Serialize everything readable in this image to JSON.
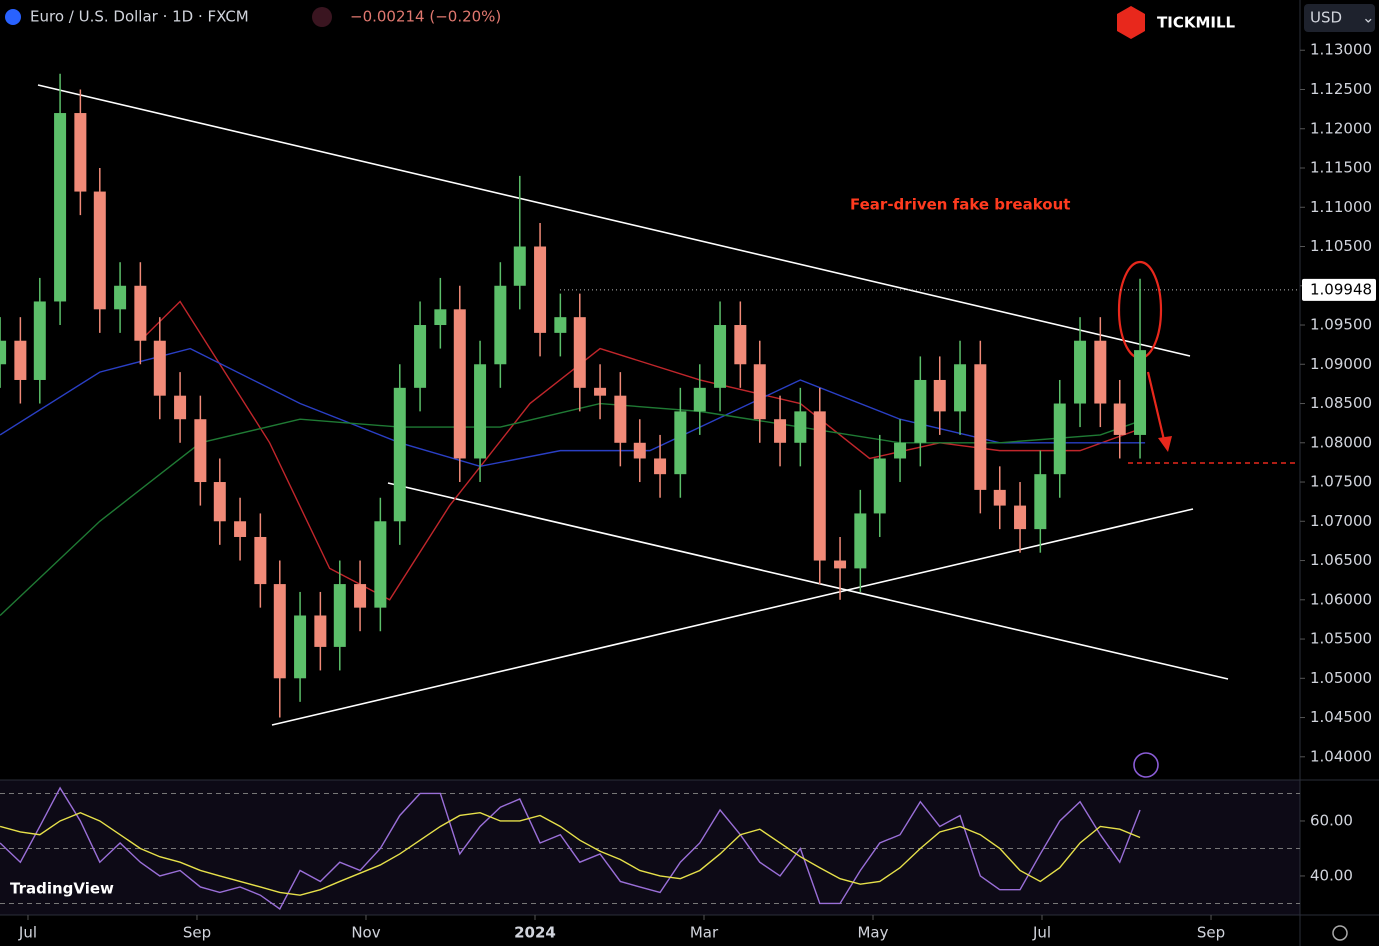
{
  "header": {
    "symbol": "Euro / U.S. Dollar · 1D · FXCM",
    "change": "−0.00214 (−0.20%)",
    "brand": "TICKMILL",
    "currency": "USD",
    "platform": "TradingView"
  },
  "chart_data": [
    {
      "type": "candlestick",
      "annotation": "Fear-driven fake breakout",
      "up_color": "#5cbf6a",
      "down_color": "#f08a78",
      "xlim": [
        -0.331,
        15.053
      ],
      "xticks": [
        {
          "value": 0,
          "label": "Jul"
        },
        {
          "value": 2,
          "label": "Sep"
        },
        {
          "value": 4,
          "label": "Nov"
        },
        {
          "value": 6,
          "label": "2024"
        },
        {
          "value": 8,
          "label": "Mar"
        },
        {
          "value": 10,
          "label": "May"
        },
        {
          "value": 12,
          "label": "Jul"
        },
        {
          "value": 14,
          "label": "Sep"
        }
      ],
      "ylim": [
        1.0373,
        1.1364
      ],
      "yticks": [
        {
          "value": 1.13,
          "label": "1.13000"
        },
        {
          "value": 1.125,
          "label": "1.12500"
        },
        {
          "value": 1.12,
          "label": "1.12000"
        },
        {
          "value": 1.115,
          "label": "1.11500"
        },
        {
          "value": 1.11,
          "label": "1.11000"
        },
        {
          "value": 1.105,
          "label": "1.10500"
        },
        {
          "value": 1.1,
          "label": "1.10000"
        },
        {
          "value": 1.095,
          "label": "1.09500"
        },
        {
          "value": 1.09,
          "label": "1.09000"
        },
        {
          "value": 1.085,
          "label": "1.08500"
        },
        {
          "value": 1.08,
          "label": "1.08000"
        },
        {
          "value": 1.075,
          "label": "1.07500"
        },
        {
          "value": 1.07,
          "label": "1.07000"
        },
        {
          "value": 1.065,
          "label": "1.06500"
        },
        {
          "value": 1.06,
          "label": "1.06000"
        },
        {
          "value": 1.055,
          "label": "1.05500"
        },
        {
          "value": 1.05,
          "label": "1.05000"
        },
        {
          "value": 1.045,
          "label": "1.04500"
        },
        {
          "value": 1.04,
          "label": "1.04000"
        }
      ],
      "price_line": {
        "value": 1.09948,
        "label": "1.09948"
      },
      "x": [
        -0.33,
        -0.09,
        0.14,
        0.38,
        0.62,
        0.85,
        1.09,
        1.33,
        1.56,
        1.8,
        2.04,
        2.27,
        2.51,
        2.75,
        2.98,
        3.22,
        3.46,
        3.69,
        3.93,
        4.17,
        4.4,
        4.64,
        4.88,
        5.11,
        5.35,
        5.59,
        5.82,
        6.06,
        6.3,
        6.53,
        6.77,
        7.01,
        7.24,
        7.48,
        7.72,
        7.95,
        8.19,
        8.43,
        8.66,
        8.9,
        9.14,
        9.37,
        9.61,
        9.85,
        10.08,
        10.32,
        10.56,
        10.79,
        11.03,
        11.27,
        11.5,
        11.74,
        11.98,
        12.21,
        12.45,
        12.69,
        12.92,
        13.16
      ],
      "open": [
        1.09,
        1.093,
        1.088,
        1.098,
        1.122,
        1.112,
        1.097,
        1.1,
        1.093,
        1.086,
        1.083,
        1.075,
        1.07,
        1.068,
        1.062,
        1.05,
        1.058,
        1.054,
        1.062,
        1.059,
        1.07,
        1.087,
        1.095,
        1.097,
        1.078,
        1.09,
        1.1,
        1.105,
        1.094,
        1.096,
        1.087,
        1.086,
        1.08,
        1.078,
        1.076,
        1.084,
        1.087,
        1.095,
        1.09,
        1.083,
        1.08,
        1.084,
        1.065,
        1.064,
        1.071,
        1.078,
        1.08,
        1.088,
        1.084,
        1.09,
        1.074,
        1.072,
        1.069,
        1.076,
        1.085,
        1.093,
        1.085,
        1.081
      ],
      "high": [
        1.096,
        1.096,
        1.101,
        1.127,
        1.125,
        1.115,
        1.103,
        1.103,
        1.096,
        1.089,
        1.086,
        1.078,
        1.073,
        1.071,
        1.065,
        1.061,
        1.061,
        1.065,
        1.065,
        1.073,
        1.09,
        1.098,
        1.101,
        1.1,
        1.093,
        1.103,
        1.114,
        1.108,
        1.099,
        1.099,
        1.09,
        1.089,
        1.083,
        1.081,
        1.087,
        1.09,
        1.098,
        1.098,
        1.093,
        1.086,
        1.087,
        1.087,
        1.068,
        1.074,
        1.081,
        1.083,
        1.091,
        1.091,
        1.093,
        1.093,
        1.077,
        1.075,
        1.079,
        1.088,
        1.096,
        1.096,
        1.088,
        1.1009
      ],
      "low": [
        1.087,
        1.085,
        1.085,
        1.095,
        1.109,
        1.094,
        1.094,
        1.09,
        1.083,
        1.08,
        1.072,
        1.067,
        1.065,
        1.059,
        1.045,
        1.047,
        1.051,
        1.051,
        1.056,
        1.056,
        1.067,
        1.084,
        1.092,
        1.075,
        1.075,
        1.087,
        1.097,
        1.091,
        1.091,
        1.084,
        1.083,
        1.077,
        1.075,
        1.073,
        1.073,
        1.081,
        1.084,
        1.087,
        1.08,
        1.077,
        1.077,
        1.062,
        1.06,
        1.061,
        1.068,
        1.075,
        1.077,
        1.081,
        1.081,
        1.071,
        1.069,
        1.066,
        1.066,
        1.073,
        1.082,
        1.082,
        1.078,
        1.078
      ],
      "close": [
        1.093,
        1.088,
        1.098,
        1.122,
        1.112,
        1.097,
        1.1,
        1.093,
        1.086,
        1.083,
        1.075,
        1.07,
        1.068,
        1.062,
        1.05,
        1.058,
        1.054,
        1.062,
        1.059,
        1.07,
        1.087,
        1.095,
        1.097,
        1.078,
        1.09,
        1.1,
        1.105,
        1.094,
        1.096,
        1.087,
        1.086,
        1.08,
        1.078,
        1.076,
        1.084,
        1.087,
        1.095,
        1.09,
        1.083,
        1.08,
        1.084,
        1.065,
        1.064,
        1.071,
        1.078,
        1.08,
        1.088,
        1.084,
        1.09,
        1.074,
        1.072,
        1.069,
        1.076,
        1.085,
        1.093,
        1.085,
        1.081,
        1.0918
      ],
      "lines": [
        {
          "color": "#c0262b",
          "x": [
            1.33,
            1.8,
            2.86,
            3.57,
            4.28,
            4.99,
            5.94,
            6.77,
            7.95,
            9.14,
            9.96,
            10.79,
            11.5,
            12.45,
            13.22
          ],
          "values": [
            1.093,
            1.098,
            1.08,
            1.064,
            1.06,
            1.072,
            1.085,
            1.092,
            1.088,
            1.085,
            1.078,
            1.08,
            1.079,
            1.079,
            1.082
          ]
        },
        {
          "color": "#2a3fc4",
          "x": [
            -0.33,
            0.85,
            1.92,
            3.22,
            4.4,
            5.35,
            6.3,
            7.36,
            9.14,
            10.32,
            11.5,
            12.69,
            13.22
          ],
          "values": [
            1.081,
            1.089,
            1.092,
            1.085,
            1.08,
            1.077,
            1.079,
            1.079,
            1.088,
            1.083,
            1.08,
            1.08,
            1.08
          ]
        },
        {
          "color": "#1f7a34",
          "x": [
            -0.33,
            0.85,
            2.04,
            3.22,
            4.4,
            5.59,
            6.77,
            7.95,
            9.14,
            10.32,
            11.5,
            12.69,
            13.22
          ],
          "values": [
            1.058,
            1.07,
            1.08,
            1.083,
            1.082,
            1.082,
            1.085,
            1.084,
            1.082,
            1.08,
            1.08,
            1.081,
            1.083
          ]
        }
      ]
    },
    {
      "type": "line",
      "xlim": [
        -0.331,
        15.053
      ],
      "ylim": [
        25.8,
        74.9
      ],
      "yticks": [
        {
          "value": 60,
          "label": "60.00"
        },
        {
          "value": 40,
          "label": "40.00"
        }
      ],
      "levels": [
        70,
        50,
        30
      ],
      "x": [
        -0.33,
        -0.09,
        0.14,
        0.38,
        0.62,
        0.85,
        1.09,
        1.33,
        1.56,
        1.8,
        2.04,
        2.27,
        2.51,
        2.75,
        2.98,
        3.22,
        3.46,
        3.69,
        3.93,
        4.17,
        4.4,
        4.64,
        4.88,
        5.11,
        5.35,
        5.59,
        5.82,
        6.06,
        6.3,
        6.53,
        6.77,
        7.01,
        7.24,
        7.48,
        7.72,
        7.95,
        8.19,
        8.43,
        8.66,
        8.9,
        9.14,
        9.37,
        9.61,
        9.85,
        10.08,
        10.32,
        10.56,
        10.79,
        11.03,
        11.27,
        11.5,
        11.74,
        11.98,
        12.21,
        12.45,
        12.69,
        12.92,
        13.16
      ],
      "series": [
        {
          "color": "#9a6fd8",
          "values": [
            52,
            45,
            58,
            72,
            60,
            45,
            52,
            45,
            40,
            42,
            36,
            34,
            36,
            33,
            28,
            42,
            38,
            45,
            42,
            50,
            62,
            70,
            70,
            48,
            58,
            65,
            68,
            52,
            55,
            45,
            48,
            38,
            36,
            34,
            45,
            52,
            64,
            55,
            45,
            40,
            50,
            30,
            30,
            42,
            52,
            55,
            67,
            58,
            62,
            40,
            35,
            35,
            48,
            60,
            67,
            55,
            45,
            64
          ]
        },
        {
          "color": "#e6e04a",
          "values": [
            58,
            56,
            55,
            60,
            63,
            60,
            55,
            50,
            47,
            45,
            42,
            40,
            38,
            36,
            34,
            33,
            35,
            38,
            41,
            44,
            48,
            53,
            58,
            62,
            63,
            60,
            60,
            62,
            58,
            53,
            49,
            46,
            42,
            40,
            39,
            42,
            48,
            55,
            57,
            52,
            47,
            43,
            39,
            37,
            38,
            43,
            50,
            56,
            58,
            55,
            50,
            42,
            38,
            43,
            52,
            58,
            57,
            54
          ]
        }
      ]
    }
  ]
}
